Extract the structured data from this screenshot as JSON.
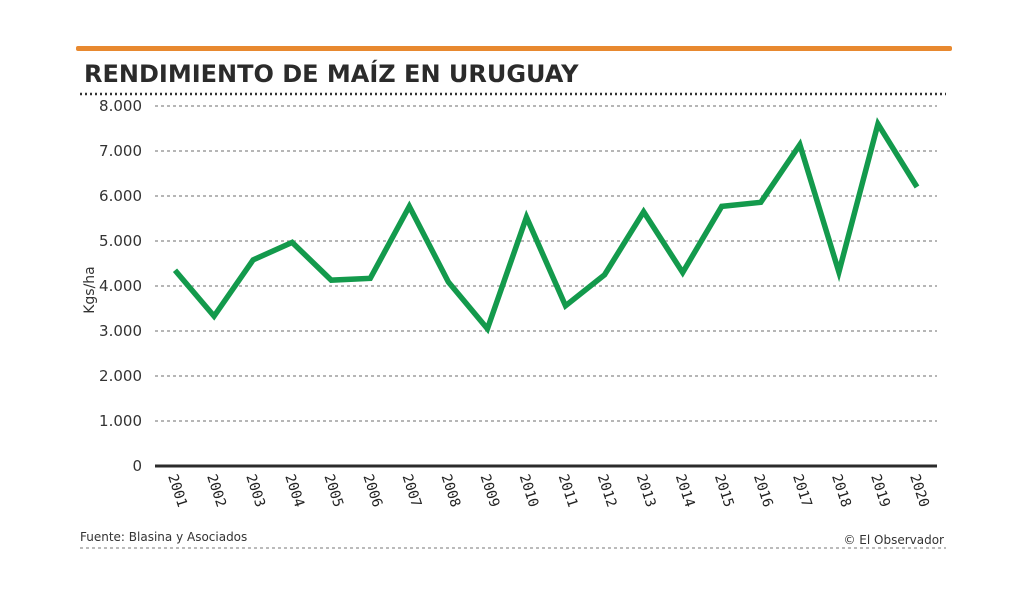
{
  "chart_data": {
    "type": "line",
    "title": "RENDIMIENTO DE MAÍZ EN URUGUAY",
    "xlabel": "",
    "ylabel": "Kgs/ha",
    "categories": [
      "2001",
      "2002",
      "2003",
      "2004",
      "2005",
      "2006",
      "2007",
      "2008",
      "2009",
      "2010",
      "2011",
      "2012",
      "2013",
      "2014",
      "2015",
      "2016",
      "2017",
      "2018",
      "2019",
      "2020"
    ],
    "series": [
      {
        "name": "Rendimiento de maíz",
        "color": "#139a4c",
        "values": [
          4350,
          3330,
          4580,
          4970,
          4130,
          4170,
          5770,
          4090,
          3050,
          5530,
          3560,
          4250,
          5650,
          4300,
          5770,
          5860,
          7140,
          4310,
          7600,
          6200
        ]
      }
    ],
    "ylim": [
      0,
      8000
    ],
    "yticks": [
      0,
      1000,
      2000,
      3000,
      4000,
      5000,
      6000,
      7000,
      8000
    ],
    "ytick_labels": [
      "0",
      "1.000",
      "2.000",
      "3.000",
      "4.000",
      "5.000",
      "6.000",
      "7.000",
      "8.000"
    ],
    "grid": true,
    "legend": "none"
  },
  "header": {
    "accent_color": "#e8892f"
  },
  "footer": {
    "source": "Fuente: Blasina y Asociados",
    "credit": "© El Observador"
  }
}
